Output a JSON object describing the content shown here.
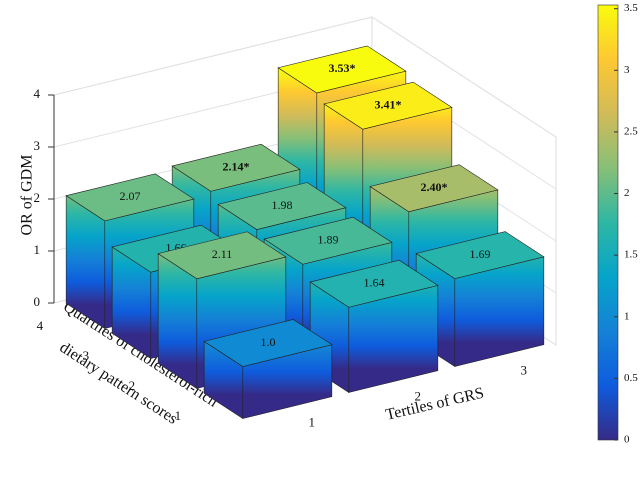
{
  "chart_data": {
    "type": "bar3d",
    "zlabel": "OR of GDM",
    "xlabel": "Tertiles of GRS",
    "ylabel": [
      "Quartiles of cholesterol-rich",
      "dietary pattern scores"
    ],
    "xticks": [
      1,
      2,
      3
    ],
    "yticks": [
      1,
      2,
      3,
      4
    ],
    "zlim": [
      0,
      4
    ],
    "zticks": [
      0,
      1,
      2,
      3,
      4
    ],
    "values": [
      [
        1.0,
        1.64,
        1.69
      ],
      [
        2.11,
        1.89,
        2.4
      ],
      [
        1.66,
        1.98,
        3.41
      ],
      [
        2.07,
        2.14,
        3.53
      ]
    ],
    "value_labels": [
      [
        "1.0",
        "1.64",
        "1.69"
      ],
      [
        "2.11",
        "1.89",
        "2.40*"
      ],
      [
        "1.66",
        "1.98",
        "3.41*"
      ],
      [
        "2.07",
        "2.14*",
        "3.53*"
      ]
    ],
    "colormap": "parula",
    "clim": [
      0,
      3.53
    ],
    "cticks": [
      0,
      0.5,
      1,
      1.5,
      2,
      2.5,
      3,
      3.5
    ],
    "grid": true
  }
}
